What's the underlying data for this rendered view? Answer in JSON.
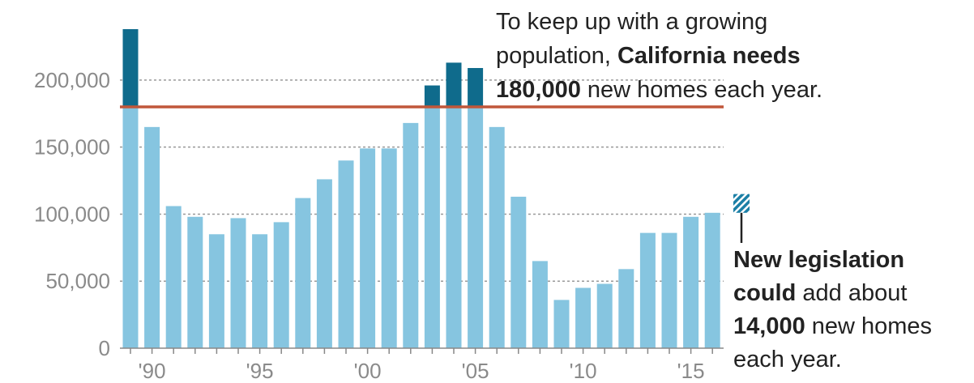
{
  "chart_data": {
    "type": "bar",
    "categories": [
      null,
      "'90",
      null,
      null,
      null,
      null,
      "'95",
      null,
      null,
      null,
      null,
      "'00",
      null,
      null,
      null,
      null,
      "'05",
      null,
      null,
      null,
      null,
      "'10",
      null,
      null,
      null,
      null,
      "'15",
      null
    ],
    "values": [
      238000,
      165000,
      106000,
      98000,
      85000,
      97000,
      85000,
      94000,
      112000,
      126000,
      140000,
      149000,
      149000,
      168000,
      196000,
      213000,
      209000,
      165000,
      113000,
      65000,
      36000,
      45000,
      48000,
      59000,
      86000,
      86000,
      98000,
      101000
    ],
    "color": "#86c5e0",
    "above_target_color": "#0f6b8c",
    "target": 180000,
    "target_color": "#c0573a",
    "addition": 14000,
    "addition_color": "#1b7fa6",
    "ylim": [
      0,
      238000
    ],
    "yticks": [
      0,
      {
        "value": 50000,
        "label": "50,000"
      },
      {
        "value": 100000,
        "label": "100,000"
      },
      {
        "value": 150000,
        "label": "150,000"
      },
      {
        "value": 200000,
        "label": "200,000"
      }
    ],
    "grid": true,
    "annotations": [
      [
        [
          {
            "text": "To keep up with a growing"
          }
        ],
        [
          {
            "text": "population, "
          },
          {
            "text": "California needs",
            "bold": true
          }
        ],
        [
          {
            "text": "180,000",
            "bold": true
          },
          {
            "text": " new homes each year."
          }
        ]
      ],
      [
        [
          {
            "text": "New legislation",
            "bold": true
          }
        ],
        [
          {
            "text": "could",
            "bold": true
          },
          {
            "text": " add about"
          }
        ],
        [
          {
            "text": "14,000",
            "bold": true
          },
          {
            "text": " new homes"
          }
        ],
        [
          {
            "text": "each year."
          }
        ]
      ]
    ]
  }
}
